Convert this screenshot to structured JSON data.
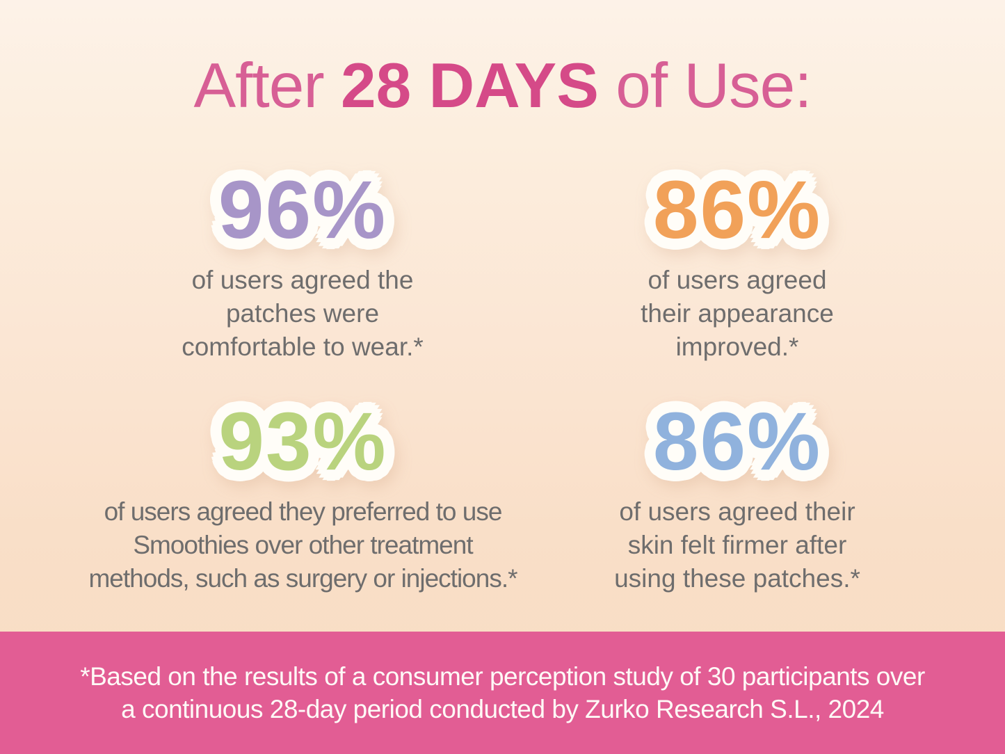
{
  "title": {
    "prefix": "After",
    "highlight": "28 DAYS",
    "suffix": "of Use:"
  },
  "stats": [
    {
      "value": "96%",
      "color": "#a795c8",
      "color_name": "purple",
      "lines": [
        "of users agreed the",
        "patches were",
        "comfortable to wear.*"
      ]
    },
    {
      "value": "86%",
      "color": "#f1a159",
      "color_name": "orange",
      "lines": [
        "of users agreed",
        "their appearance",
        "improved.*"
      ]
    },
    {
      "value": "93%",
      "color": "#b9d37e",
      "color_name": "green",
      "lines": [
        "of users agreed they preferred to use",
        "Smoothies over other treatment",
        "methods, such as surgery or injections.*"
      ]
    },
    {
      "value": "86%",
      "color": "#90b2dd",
      "color_name": "blue",
      "lines": [
        "of users agreed their",
        "skin felt firmer after",
        "using these patches.*"
      ]
    }
  ],
  "footnote": {
    "lines": [
      "*Based on the results of a consumer perception study of 30 participants over",
      "a continuous 28-day period conducted by Zurko Research S.L., 2024"
    ]
  },
  "colors": {
    "title_pink": "#d75f95",
    "title_pink_bold": "#d54a88",
    "body_gray": "#6e6d6d",
    "footer_bar_pink": "#e25d94",
    "background_top": "#fdf2e8",
    "background_bottom": "#f8dcc2",
    "sticker_outline": "#fffdf8"
  },
  "chart_data": {
    "type": "table",
    "title": "After 28 DAYS of Use:",
    "categories": [
      "agreed the patches were comfortable to wear",
      "agreed their appearance improved",
      "agreed they preferred to use Smoothies over other treatment methods, such as surgery or injections",
      "agreed their skin felt firmer after using these patches"
    ],
    "values": [
      96,
      86,
      93,
      86
    ],
    "unit": "% of users",
    "source": "Consumer perception study of 30 participants over a continuous 28-day period conducted by Zurko Research S.L., 2024"
  }
}
